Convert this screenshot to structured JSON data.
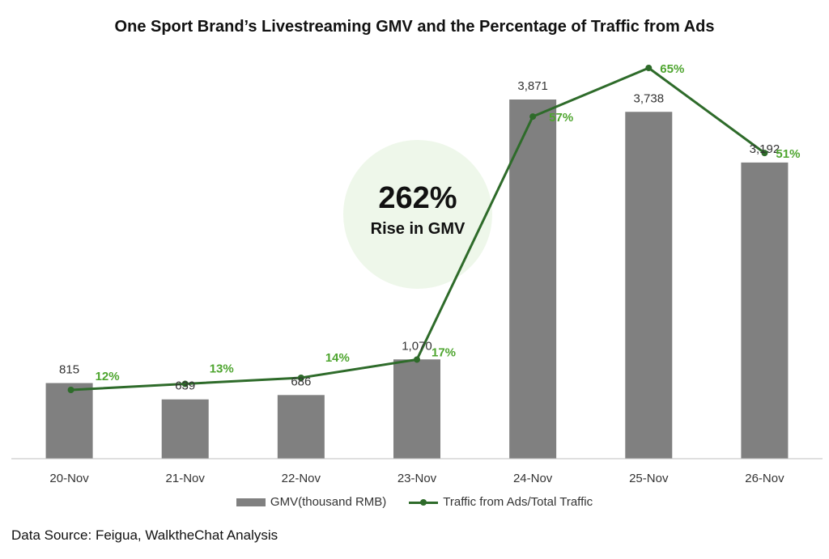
{
  "chart_data": {
    "type": "bar",
    "title": "One Sport Brand’s Livestreaming GMV and the Percentage of Traffic from Ads",
    "categories": [
      "20-Nov",
      "21-Nov",
      "22-Nov",
      "23-Nov",
      "24-Nov",
      "25-Nov",
      "26-Nov"
    ],
    "series": [
      {
        "name": "GMV(thousand RMB)",
        "type": "bar",
        "values": [
          815,
          639,
          686,
          1070,
          3871,
          3738,
          3192
        ],
        "labels": [
          "815",
          "639",
          "686",
          "1,070",
          "3,871",
          "3,738",
          "3,192"
        ],
        "color": "#808080"
      },
      {
        "name": "Traffic from Ads/Total Traffic",
        "type": "line",
        "values": [
          12,
          13,
          14,
          17,
          57,
          65,
          51
        ],
        "labels": [
          "12%",
          "13%",
          "14%",
          "17%",
          "57%",
          "65%",
          "51%"
        ],
        "color": "#2e6b2a",
        "label_color": "#4ea52f"
      }
    ],
    "ylim_bar": [
      0,
      4000
    ],
    "ylim_line": [
      0,
      70
    ],
    "grid": false,
    "legend": "bottom",
    "annotation": {
      "value": "262%",
      "text": "Rise in GMV",
      "bg_color": "#eef7ea"
    }
  },
  "footer": {
    "source": "Data Source: Feigua, WalktheChat Analysis"
  }
}
